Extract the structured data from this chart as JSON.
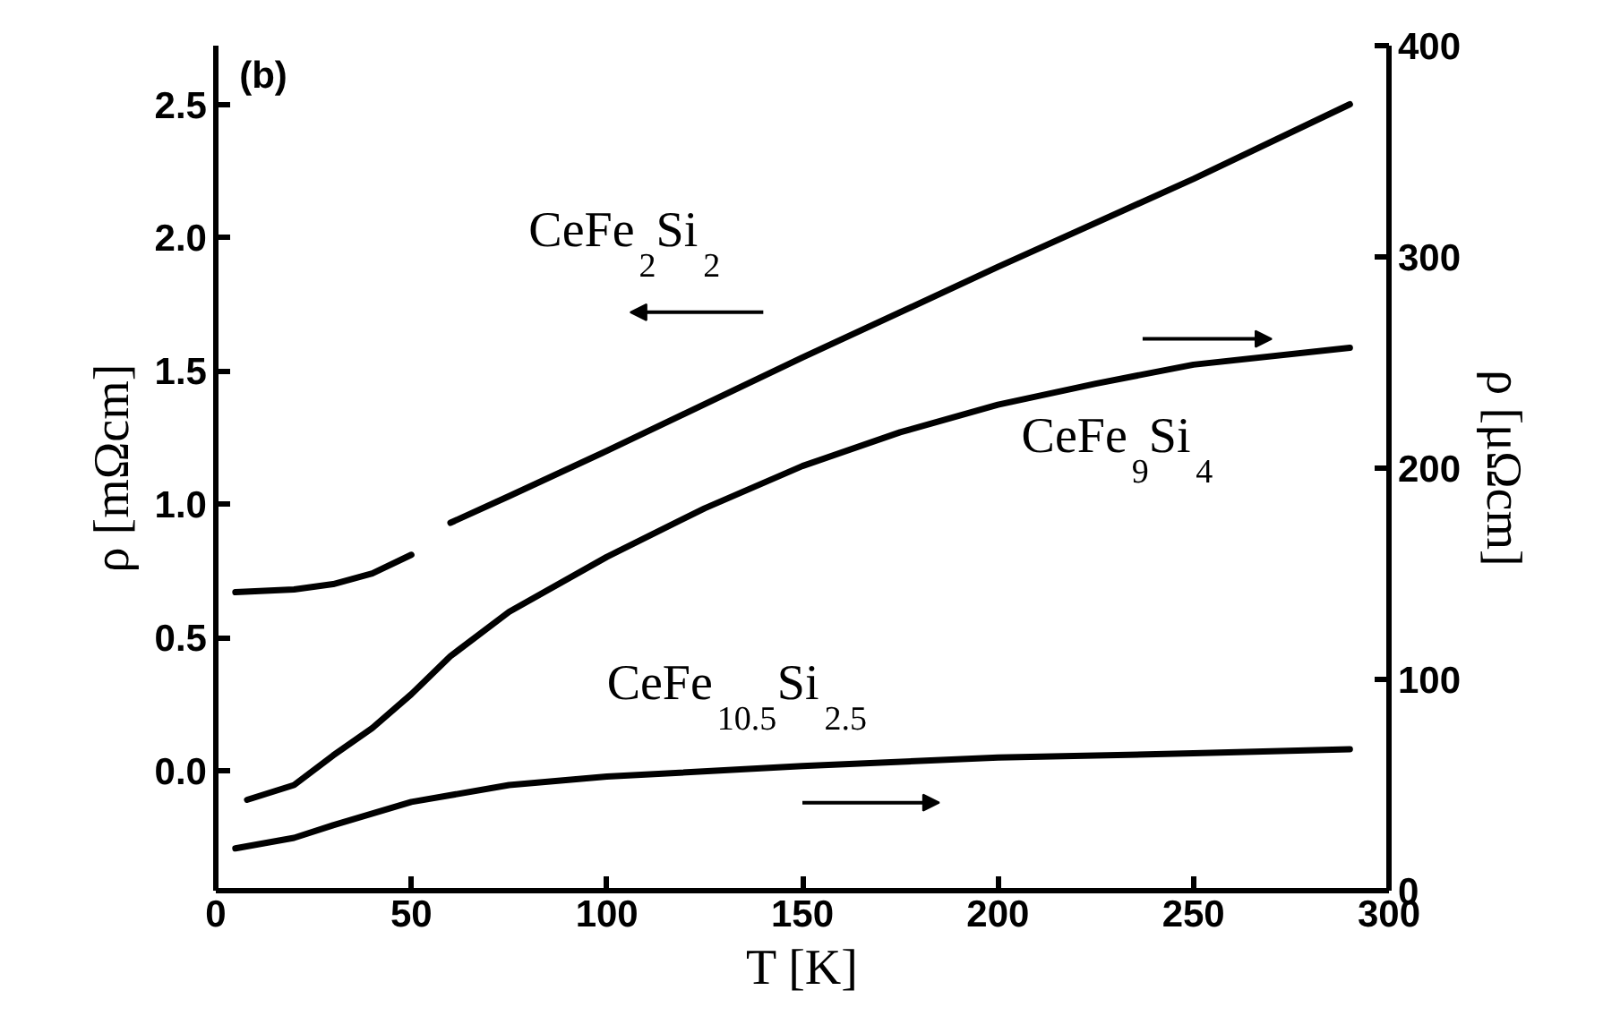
{
  "chart_data": {
    "type": "line",
    "xlabel": "T [K]",
    "ylabel": "ρ [mΩcm]",
    "y2label": "ρ [μΩcm]",
    "xlim": [
      0,
      300
    ],
    "xticks": [
      0,
      50,
      100,
      150,
      200,
      250,
      300
    ],
    "ylim": [
      -0.45,
      2.72
    ],
    "yticks": [
      {
        "value": 0,
        "label": "0.0"
      },
      0.5,
      {
        "value": 1,
        "label": "1.0"
      },
      1.5,
      {
        "value": 2,
        "label": "2.0"
      },
      2.5
    ],
    "y2lim": [
      0,
      400
    ],
    "y2ticks": [
      0,
      100,
      200,
      300,
      400
    ],
    "grid": false,
    "marker": "none",
    "line_style": "solid",
    "series": [
      {
        "color": "#000000",
        "x": [
          5,
          20,
          30,
          40,
          50,
          55,
          60,
          75,
          100,
          150,
          200,
          250,
          290
        ],
        "values": [
          0.67,
          0.68,
          0.7,
          0.74,
          0.81,
          null,
          0.93,
          1.03,
          1.2,
          1.55,
          1.89,
          2.22,
          2.5
        ]
      },
      {
        "color": "#000000",
        "axis": "y2",
        "x": [
          8,
          20,
          30,
          40,
          50,
          60,
          75,
          100,
          125,
          150,
          175,
          200,
          225,
          250,
          290
        ],
        "values": [
          43,
          50,
          64,
          77,
          93,
          111,
          132,
          158,
          181,
          201,
          217,
          230,
          240,
          249,
          257
        ]
      },
      {
        "color": "#000000",
        "axis": "y2",
        "x": [
          5,
          20,
          30,
          50,
          75,
          100,
          150,
          200,
          250,
          290
        ],
        "values": [
          20,
          25,
          31,
          42,
          50,
          54,
          59,
          63,
          65,
          67
        ]
      }
    ],
    "annotations": [
      "(b)",
      "CeFe$_{2}$Si$_{2}$",
      "CeFe$_{9}$Si$_{4}$",
      "CeFe$_{10.5}$Si$_{2.5}$"
    ]
  }
}
